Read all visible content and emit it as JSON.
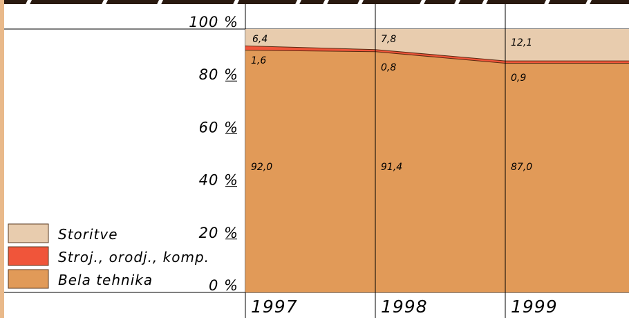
{
  "chart_data": {
    "type": "area",
    "stacked": "percent",
    "categories": [
      "1997",
      "1998",
      "1999"
    ],
    "series": [
      {
        "name": "Bela tehnika",
        "values": [
          92.0,
          91.4,
          87.0
        ],
        "labels": [
          "92,0",
          "91,4",
          "87,0"
        ],
        "color": "#e19a58"
      },
      {
        "name": "Stroj., orodj., komp.",
        "values": [
          1.6,
          0.8,
          0.9
        ],
        "labels": [
          "1,6",
          "0,8",
          "0,9"
        ],
        "color": "#f0553a"
      },
      {
        "name": "Storitve",
        "values": [
          6.4,
          7.8,
          12.1
        ],
        "labels": [
          "6,4",
          "7,8",
          "12,1"
        ],
        "color": "#e8ccae"
      }
    ],
    "yticks": [
      "0 %",
      "20 %",
      "40 %",
      "60 %",
      "80 %",
      "100 %"
    ],
    "ylim": [
      0,
      100
    ],
    "legend_placement": "bottom-left",
    "colors": {
      "frame": "#e9b98a",
      "gridline": "#000000"
    }
  }
}
